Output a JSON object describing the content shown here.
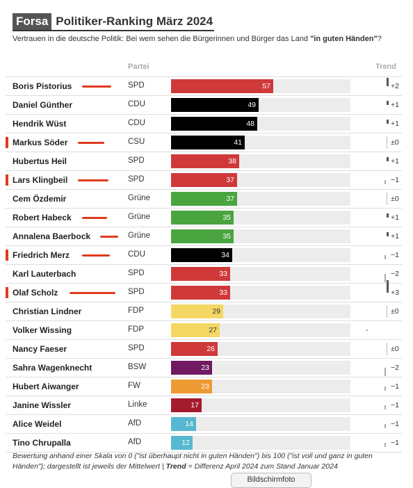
{
  "header": {
    "brand": "Forsa",
    "title": "Politiker-Ranking März 2024",
    "subtitle_pre": "Vertrauen in die deutsche Politik: Bei wem sehen die Bürgerinnen und Bürger das Land ",
    "subtitle_bold": "\"in guten Händen\"",
    "subtitle_post": "?"
  },
  "columns": {
    "party": "Partei",
    "trend": "Trend"
  },
  "colors": {
    "SPD": "#d0393a",
    "CDU": "#000000",
    "CSU": "#000000",
    "Grüne": "#4aa43f",
    "FDP": "#f5d764",
    "BSW": "#6f1a63",
    "FW": "#ee9a33",
    "Linke": "#a31b2c",
    "AfD": "#56b9cf",
    "annotation": "#e03a1e"
  },
  "chart_data": {
    "type": "bar",
    "title": "Politiker-Ranking März 2024",
    "xlim": [
      0,
      100
    ],
    "rows": [
      {
        "name": "Boris Pistorius",
        "party": "SPD",
        "value": 57,
        "trend": "+2",
        "trend_num": 2,
        "marker": false,
        "scribble": true
      },
      {
        "name": "Daniel Günther",
        "party": "CDU",
        "value": 49,
        "trend": "+1",
        "trend_num": 1,
        "marker": false,
        "scribble": false
      },
      {
        "name": "Hendrik Wüst",
        "party": "CDU",
        "value": 48,
        "trend": "+1",
        "trend_num": 1,
        "marker": false,
        "scribble": false
      },
      {
        "name": "Markus Söder",
        "party": "CSU",
        "value": 41,
        "trend": "±0",
        "trend_num": 0,
        "marker": true,
        "scribble": true
      },
      {
        "name": "Hubertus Heil",
        "party": "SPD",
        "value": 38,
        "trend": "+1",
        "trend_num": 1,
        "marker": false,
        "scribble": false
      },
      {
        "name": "Lars Klingbeil",
        "party": "SPD",
        "value": 37,
        "trend": "−1",
        "trend_num": -1,
        "marker": true,
        "scribble": true
      },
      {
        "name": "Cem Özdemir",
        "party": "Grüne",
        "value": 37,
        "trend": "±0",
        "trend_num": 0,
        "marker": false,
        "scribble": false
      },
      {
        "name": "Robert Habeck",
        "party": "Grüne",
        "value": 35,
        "trend": "+1",
        "trend_num": 1,
        "marker": false,
        "scribble": true
      },
      {
        "name": "Annalena Baerbock",
        "party": "Grüne",
        "value": 35,
        "trend": "+1",
        "trend_num": 1,
        "marker": false,
        "scribble": true
      },
      {
        "name": "Friedrich Merz",
        "party": "CDU",
        "value": 34,
        "trend": "−1",
        "trend_num": -1,
        "marker": true,
        "scribble": true
      },
      {
        "name": "Karl Lauterbach",
        "party": "SPD",
        "value": 33,
        "trend": "−2",
        "trend_num": -2,
        "marker": false,
        "scribble": false
      },
      {
        "name": "Olaf Scholz",
        "party": "SPD",
        "value": 33,
        "trend": "+3",
        "trend_num": 3,
        "marker": true,
        "scribble": true
      },
      {
        "name": "Christian Lindner",
        "party": "FDP",
        "value": 29,
        "trend": "±0",
        "trend_num": 0,
        "marker": false,
        "scribble": false
      },
      {
        "name": "Volker Wissing",
        "party": "FDP",
        "value": 27,
        "trend": "-",
        "trend_num": null,
        "marker": false,
        "scribble": false
      },
      {
        "name": "Nancy Faeser",
        "party": "SPD",
        "value": 26,
        "trend": "±0",
        "trend_num": 0,
        "marker": false,
        "scribble": false
      },
      {
        "name": "Sahra Wagenknecht",
        "party": "BSW",
        "value": 23,
        "trend": "−2",
        "trend_num": -2,
        "marker": false,
        "scribble": false
      },
      {
        "name": "Hubert Aiwanger",
        "party": "FW",
        "value": 23,
        "trend": "−1",
        "trend_num": -1,
        "marker": false,
        "scribble": false
      },
      {
        "name": "Janine Wissler",
        "party": "Linke",
        "value": 17,
        "trend": "−1",
        "trend_num": -1,
        "marker": false,
        "scribble": false
      },
      {
        "name": "Alice Weidel",
        "party": "AfD",
        "value": 14,
        "trend": "−1",
        "trend_num": -1,
        "marker": false,
        "scribble": false
      },
      {
        "name": "Tino Chrupalla",
        "party": "AfD",
        "value": 12,
        "trend": "−1",
        "trend_num": -1,
        "marker": false,
        "scribble": false
      }
    ]
  },
  "footnote": {
    "text1": "Bewertung anhand einer Skala von 0 (\"ist überhaupt nicht in guten Händen\") bis 100 (\"ist voll und ganz in guten Händen\"); dargestellt ist jeweils der Mittelwert | ",
    "bold": "Trend",
    "text2": " = Differenz April 2024 zum Stand Januar 2024"
  },
  "screenshot_button": "Bildschirmfoto"
}
